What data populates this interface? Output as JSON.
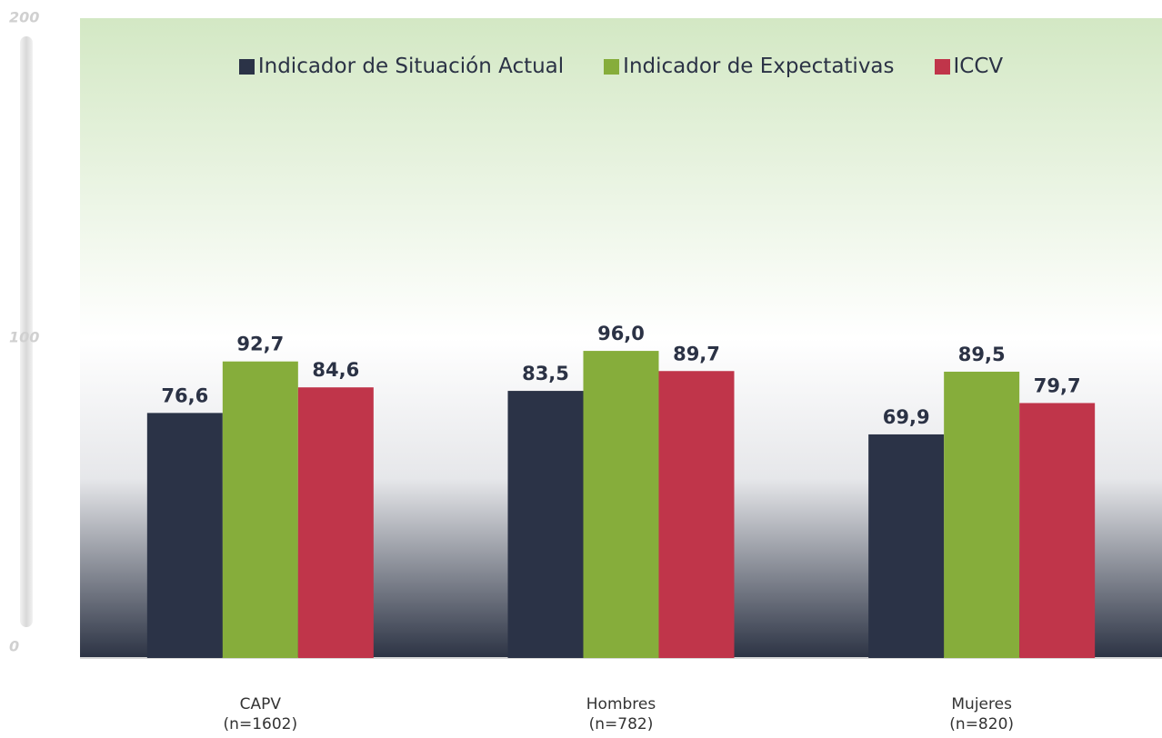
{
  "chart_data": {
    "type": "bar",
    "categories": [
      "CAPV\n(n=1602)",
      "Hombres\n(n=782)",
      "Mujeres\n(n=820)"
    ],
    "series": [
      {
        "name": "Indicador de Situación Actual",
        "color": "#2b3347",
        "values": [
          76.6,
          83.5,
          69.9
        ],
        "value_labels": [
          "76,6",
          "83,5",
          "69,9"
        ]
      },
      {
        "name": "Indicador de Expectativas",
        "color": "#86ad3b",
        "values": [
          92.7,
          96.0,
          89.5
        ],
        "value_labels": [
          "92,7",
          "96,0",
          "89,5"
        ]
      },
      {
        "name": "ICCV",
        "color": "#c0354a",
        "values": [
          84.6,
          89.7,
          79.7
        ],
        "value_labels": [
          "84,6",
          "89,7",
          "79,7"
        ]
      }
    ],
    "ylim": [
      0,
      200
    ],
    "yticks": [
      0,
      100,
      200
    ],
    "legend": "top"
  }
}
